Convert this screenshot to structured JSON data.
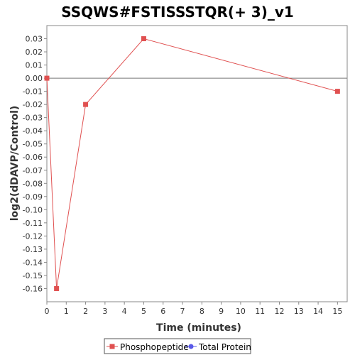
{
  "chart_data": {
    "type": "line",
    "title": "SSQWS#FSTISSSTQR(+ 3)_v1",
    "xlabel": "Time (minutes)",
    "ylabel": "log2(dDAVP/Control)",
    "xlim": [
      0,
      15.5
    ],
    "ylim": [
      -0.17,
      0.04
    ],
    "xticks": [
      0,
      1,
      2,
      3,
      4,
      5,
      6,
      7,
      8,
      9,
      10,
      11,
      12,
      13,
      14,
      15
    ],
    "yticks": [
      0.03,
      0.02,
      0.01,
      0.0,
      -0.01,
      -0.02,
      -0.03,
      -0.04,
      -0.05,
      -0.06,
      -0.07,
      -0.08,
      -0.09,
      -0.1,
      -0.11,
      -0.12,
      -0.13,
      -0.14,
      -0.15,
      -0.16
    ],
    "ytick_labels": [
      "0.03",
      "0.02",
      "0.01",
      "0.00",
      "-0.01",
      "-0.02",
      "-0.03",
      "-0.04",
      "-0.05",
      "-0.06",
      "-0.07",
      "-0.08",
      "-0.09",
      "-0.10",
      "-0.11",
      "-0.12",
      "-0.13",
      "-0.14",
      "-0.15",
      "-0.16"
    ],
    "zero_line": 0,
    "grid": false,
    "legend_position": "bottom-center",
    "series": [
      {
        "name": "Phosphopeptide",
        "color": "#e05050",
        "marker": "square",
        "x": [
          0,
          0.5,
          2,
          5,
          15
        ],
        "y": [
          0.0,
          -0.16,
          -0.02,
          0.03,
          -0.01
        ]
      },
      {
        "name": "Total Protein",
        "color": "#5a5ae8",
        "marker": "circle",
        "x": [],
        "y": []
      }
    ]
  }
}
